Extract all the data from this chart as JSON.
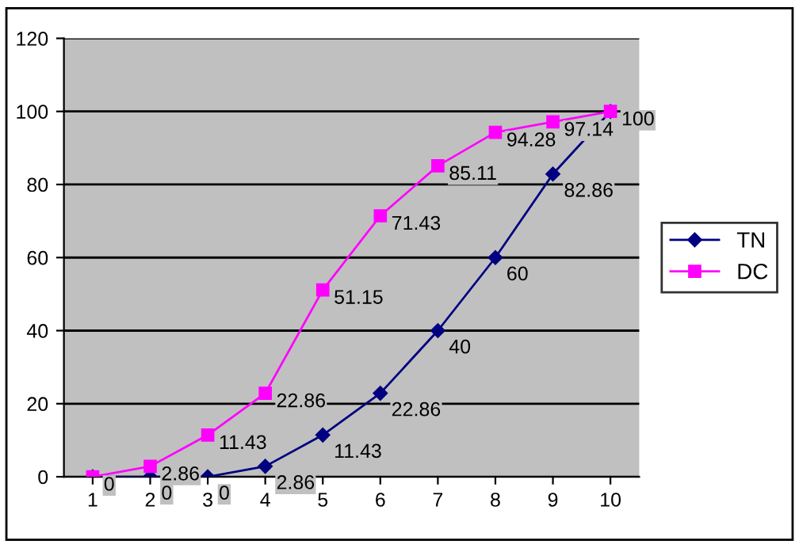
{
  "chart_data": {
    "type": "line",
    "categories": [
      "1",
      "2",
      "3",
      "4",
      "5",
      "6",
      "7",
      "8",
      "9",
      "10"
    ],
    "series": [
      {
        "name": "TN",
        "color": "#000080",
        "marker": "diamond",
        "values": [
          0,
          0,
          0,
          2.86,
          11.43,
          22.86,
          40,
          60,
          82.86,
          100
        ],
        "value_labels": [
          null,
          "0",
          "0",
          "2.86",
          "11.43",
          "22.86",
          "40",
          "60",
          "82.86",
          null
        ]
      },
      {
        "name": "DC",
        "color": "#ff00ff",
        "marker": "square",
        "values": [
          0,
          2.86,
          11.43,
          22.86,
          51.15,
          71.43,
          85.11,
          94.28,
          97.14,
          100
        ],
        "value_labels": [
          "0",
          "2.86",
          "11.43",
          "22.86",
          "51.15",
          "71.43",
          "85.11",
          "94.28",
          "97.14",
          "100"
        ]
      }
    ],
    "ylim": [
      0,
      120
    ],
    "yticks": [
      0,
      20,
      40,
      60,
      80,
      100,
      120
    ],
    "grid": "y",
    "legend": "right"
  }
}
